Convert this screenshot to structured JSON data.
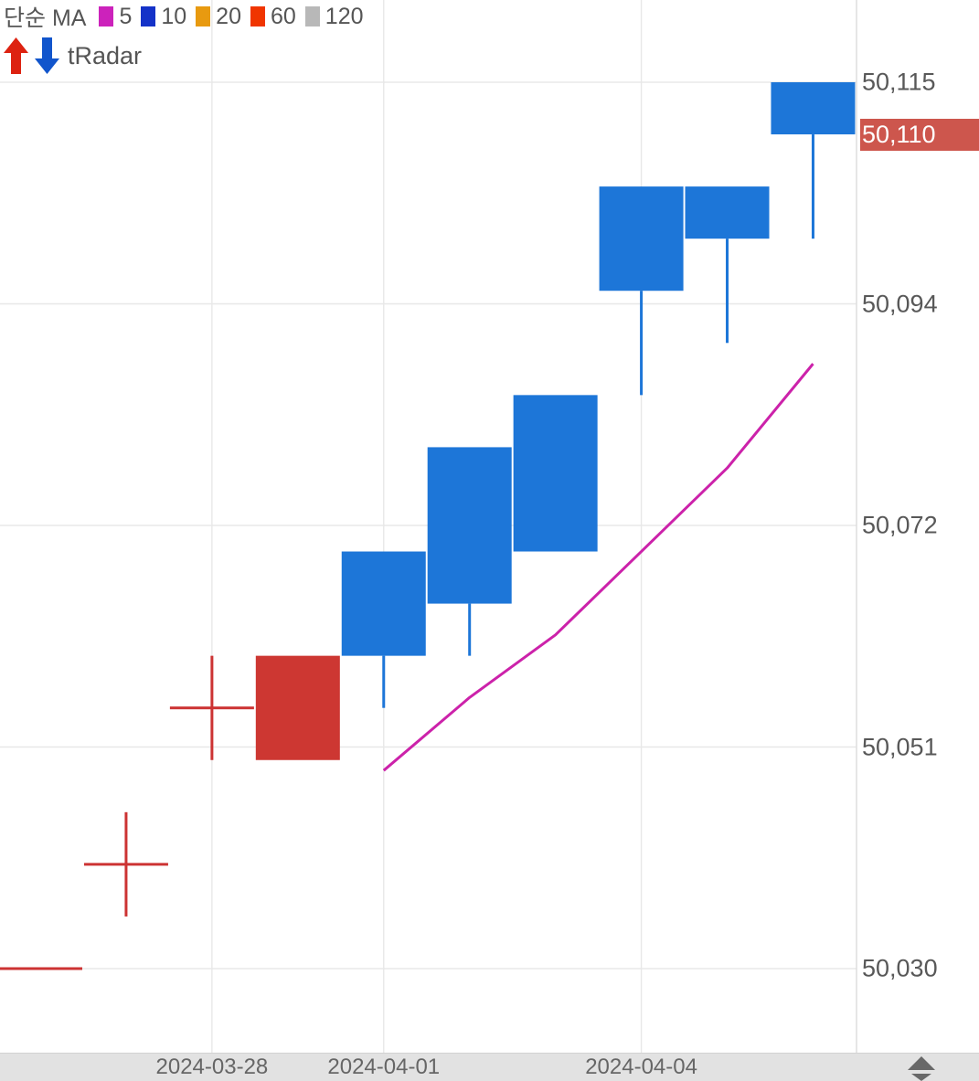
{
  "legend": {
    "title": "단순 MA",
    "items": [
      {
        "label": "5",
        "color": "#cc22bb"
      },
      {
        "label": "10",
        "color": "#1432c8"
      },
      {
        "label": "20",
        "color": "#e89a10"
      },
      {
        "label": "60",
        "color": "#f03500"
      },
      {
        "label": "120",
        "color": "#b8b8b8"
      }
    ]
  },
  "radar": {
    "label": "tRadar",
    "up_arrow_color": "#dd2211",
    "down_arrow_color": "#1155cc"
  },
  "chart_data": {
    "type": "candlestick",
    "title": "Daily candlestick chart with 5-period simple moving average",
    "convention": "korean: red = up candle (close>open), blue = down candle (close<open)",
    "up_color": "#cd3732",
    "down_color": "#1d76d8",
    "doji_color": "#cc3333",
    "ma5_color": "#cc22aa",
    "grid": true,
    "y_range": [
      50030,
      50115
    ],
    "candles": [
      {
        "open": 50030,
        "high": 50030,
        "low": 50030,
        "close": 50030
      },
      {
        "open": 50040,
        "high": 50045,
        "low": 50035,
        "close": 50040
      },
      {
        "open": 50055,
        "high": 50060,
        "low": 50050,
        "close": 50055
      },
      {
        "open": 50050,
        "high": 50060,
        "low": 50050,
        "close": 50060
      },
      {
        "open": 50070,
        "high": 50070,
        "low": 50055,
        "close": 50060
      },
      {
        "open": 50080,
        "high": 50080,
        "low": 50060,
        "close": 50065
      },
      {
        "open": 50085,
        "high": 50085,
        "low": 50070,
        "close": 50070
      },
      {
        "open": 50105,
        "high": 50105,
        "low": 50085,
        "close": 50095
      },
      {
        "open": 50105,
        "high": 50105,
        "low": 50090,
        "close": 50100
      },
      {
        "open": 50115,
        "high": 50115,
        "low": 50100,
        "close": 50110
      }
    ],
    "ma5": [
      null,
      null,
      null,
      null,
      50049,
      50056,
      50062,
      50070,
      50078,
      50088
    ],
    "y_ticks": [
      {
        "label": "50,115",
        "value": 50115
      },
      {
        "label": "50,094",
        "value": 50093.75
      },
      {
        "label": "50,072",
        "value": 50072.5
      },
      {
        "label": "50,051",
        "value": 50051.25
      },
      {
        "label": "50,030",
        "value": 50030
      }
    ],
    "x_ticks": [
      {
        "label": "2024-03-28",
        "candle_index": 2
      },
      {
        "label": "2024-04-01",
        "candle_index": 4
      },
      {
        "label": "2024-04-04",
        "candle_index": 7
      }
    ],
    "last_price": {
      "label": "50,110",
      "value": 50110,
      "box_color": "#cd564d",
      "text_color": "#ffffff"
    }
  }
}
